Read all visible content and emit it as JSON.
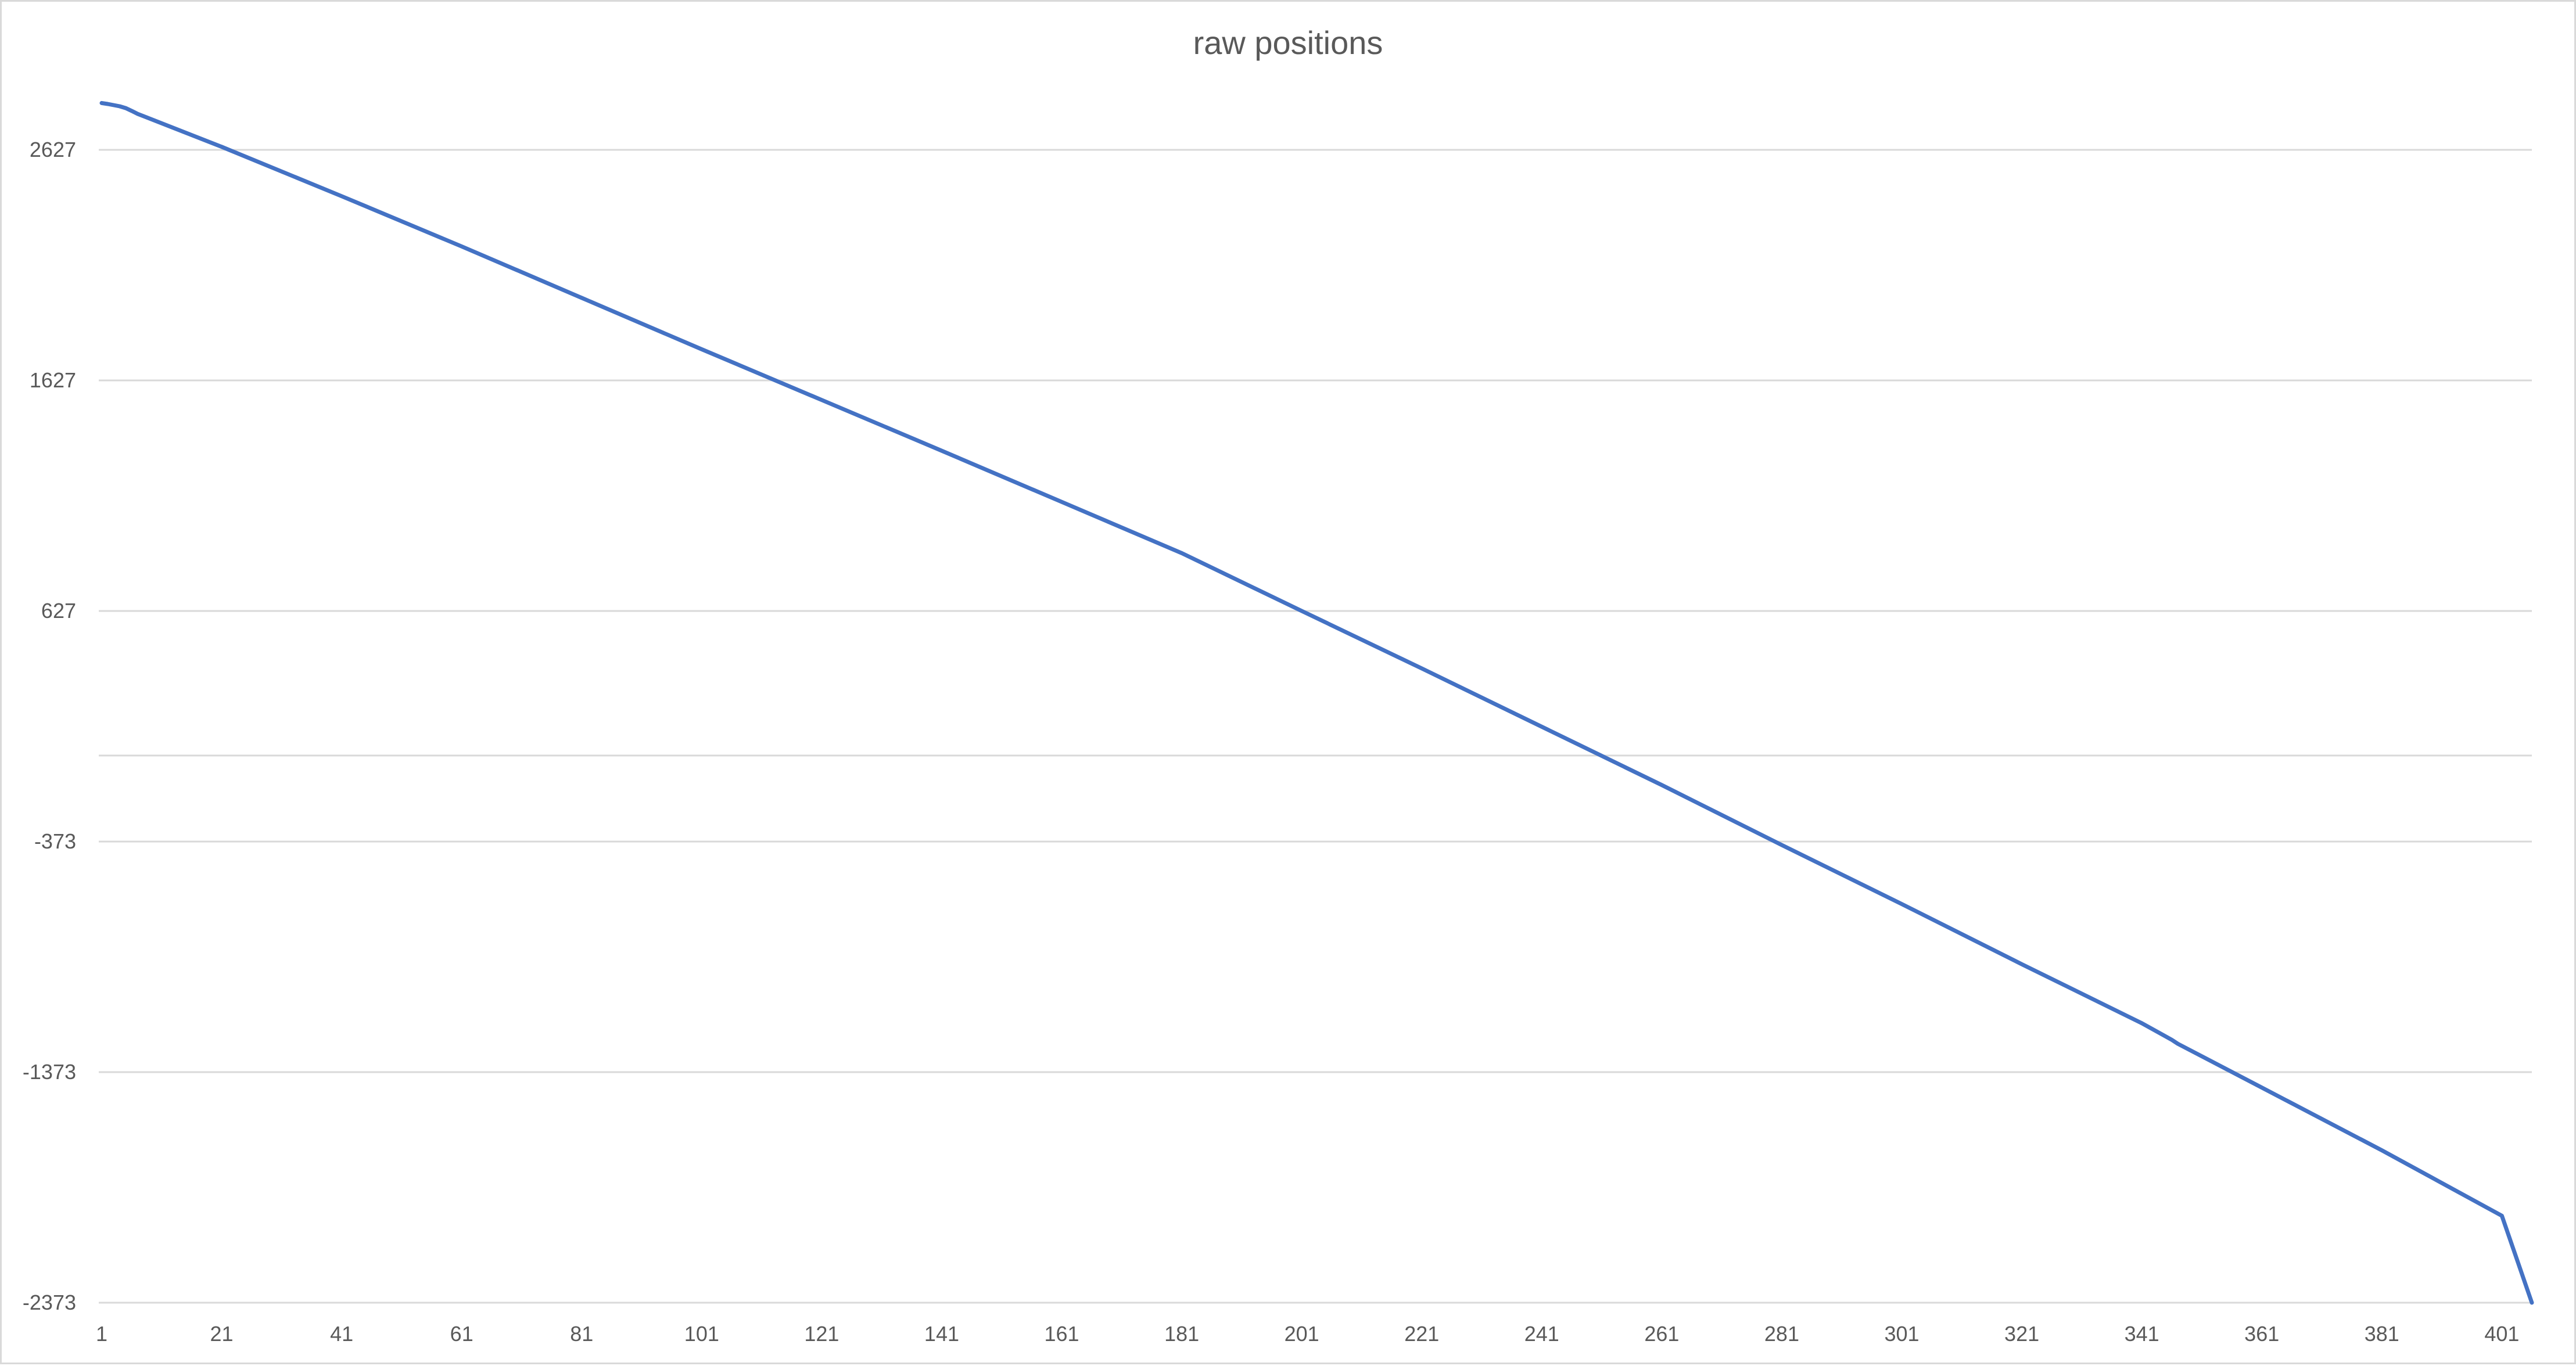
{
  "chart_data": {
    "type": "line",
    "title": "raw positions",
    "xlabel": "",
    "ylabel": "",
    "x_range": [
      1,
      406
    ],
    "x_ticks": [
      1,
      21,
      41,
      61,
      81,
      101,
      121,
      141,
      161,
      181,
      201,
      221,
      241,
      261,
      281,
      301,
      321,
      341,
      361,
      381,
      401
    ],
    "y_ticks": [
      2627,
      1627,
      627,
      -373,
      -1373,
      -2373
    ],
    "ylim": [
      -2373,
      2860
    ],
    "grid": true,
    "legend": "none",
    "series": [
      {
        "color": "#4472c4",
        "x": [
          1,
          2,
          3,
          4,
          5,
          6,
          7,
          21,
          41,
          61,
          81,
          101,
          121,
          141,
          161,
          181,
          201,
          221,
          241,
          261,
          281,
          301,
          321,
          341,
          346,
          347,
          361,
          381,
          401,
          406
        ],
        "y": [
          2830,
          2826,
          2821,
          2816,
          2808,
          2796,
          2783,
          2640,
          2426,
          2208,
          1985,
          1762,
          1542,
          1322,
          1100,
          878,
          627,
          378,
          125,
          -128,
          -388,
          -644,
          -905,
          -1161,
          -1233,
          -1250,
          -1440,
          -1712,
          -1996,
          -2373
        ]
      }
    ]
  }
}
